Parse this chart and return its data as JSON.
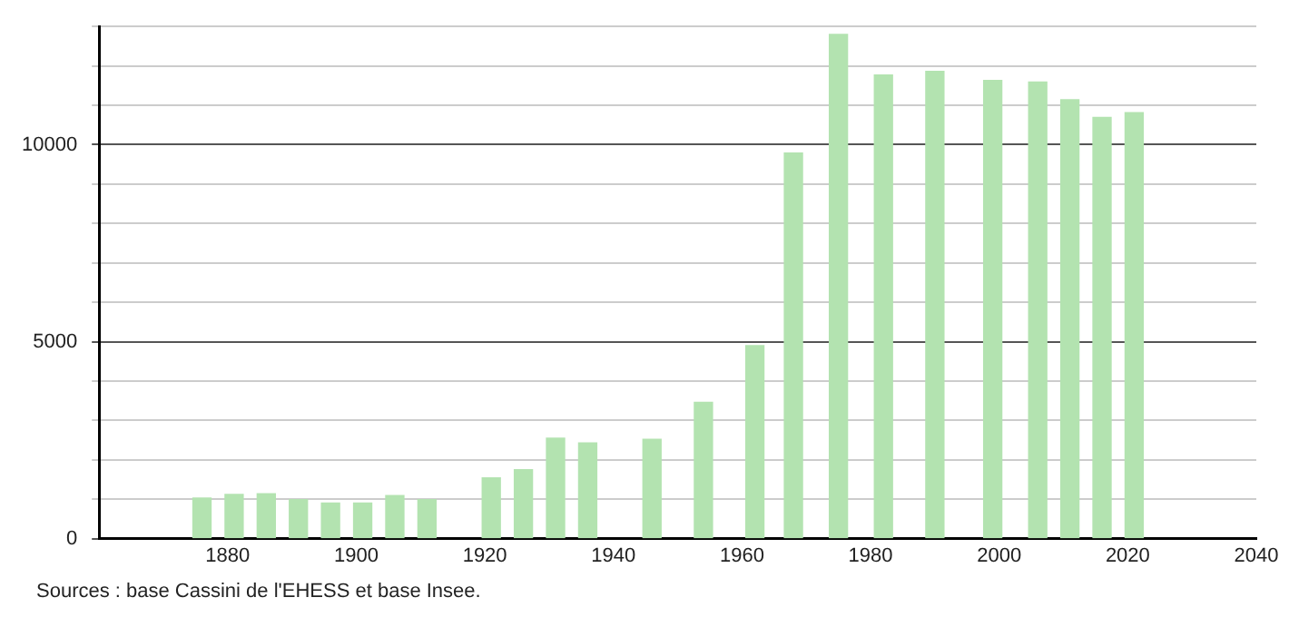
{
  "chart_data": {
    "type": "bar",
    "x": [
      1876,
      1881,
      1886,
      1891,
      1896,
      1901,
      1906,
      1911,
      1921,
      1926,
      1931,
      1936,
      1946,
      1954,
      1962,
      1968,
      1975,
      1982,
      1990,
      1999,
      2006,
      2011,
      2016,
      2021
    ],
    "values": [
      1030,
      1120,
      1140,
      990,
      900,
      900,
      1090,
      990,
      1540,
      1750,
      2550,
      2430,
      2520,
      3460,
      4900,
      9790,
      12800,
      11770,
      11860,
      11630,
      11590,
      11140,
      10690,
      10810
    ],
    "color": "#b3e3b0",
    "xlim": [
      1860,
      2040
    ],
    "xticks": [
      1880,
      1900,
      1920,
      1940,
      1960,
      1980,
      2000,
      2020,
      2040
    ],
    "ylim": [
      0,
      13000
    ],
    "yticks": [
      0,
      {
        "value": 1000,
        "label": null
      },
      {
        "value": 2000,
        "label": null
      },
      {
        "value": 3000,
        "label": null
      },
      {
        "value": 4000,
        "label": null
      },
      5000,
      {
        "value": 6000,
        "label": null
      },
      {
        "value": 7000,
        "label": null
      },
      {
        "value": 8000,
        "label": null
      },
      {
        "value": 9000,
        "label": null
      },
      10000,
      {
        "value": 11000,
        "label": null
      },
      {
        "value": 12000,
        "label": null
      },
      {
        "value": 13000,
        "label": null
      }
    ],
    "grid": "y",
    "legend": false,
    "annotations": [
      "Sources : base Cassini de l'EHESS et base Insee."
    ]
  }
}
